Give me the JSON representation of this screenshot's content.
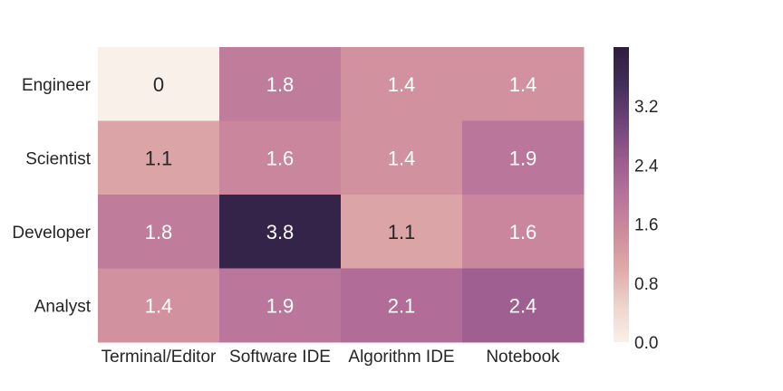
{
  "chart_data": {
    "type": "heatmap",
    "title": "",
    "xlabel": "",
    "ylabel": "",
    "rows": [
      "Engineer",
      "Scientist",
      "Developer",
      "Analyst"
    ],
    "columns": [
      "Terminal/Editor",
      "Software IDE",
      "Algorithm IDE",
      "Notebook"
    ],
    "values": [
      [
        0,
        1.8,
        1.4,
        1.4
      ],
      [
        1.1,
        1.6,
        1.4,
        1.9
      ],
      [
        1.8,
        3.8,
        1.1,
        1.6
      ],
      [
        1.4,
        1.9,
        2.1,
        2.4
      ]
    ],
    "value_labels": [
      [
        "0",
        "1.8",
        "1.4",
        "1.4"
      ],
      [
        "1.1",
        "1.6",
        "1.4",
        "1.9"
      ],
      [
        "1.8",
        "3.8",
        "1.1",
        "1.6"
      ],
      [
        "1.4",
        "1.9",
        "2.1",
        "2.4"
      ]
    ],
    "colorbar": {
      "range": [
        0,
        4
      ],
      "ticks": [
        "0.0",
        "0.8",
        "1.6",
        "2.4",
        "3.2"
      ],
      "tick_values": [
        0,
        0.8,
        1.6,
        2.4,
        3.2
      ],
      "colors": [
        "#faf0ea",
        "#eed3cb",
        "#dfaaa8",
        "#cd8b9c",
        "#b7729b",
        "#995a8d",
        "#6d4279",
        "#422e5a",
        "#2d1e3e"
      ]
    },
    "grid": false,
    "legend": "colorbar-right"
  }
}
